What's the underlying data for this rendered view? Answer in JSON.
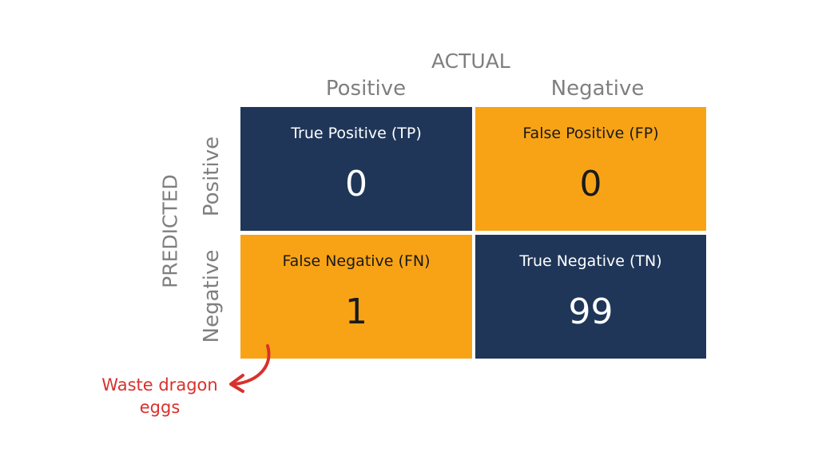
{
  "colors": {
    "dark_cell": "#1f3659",
    "orange_cell": "#f8a316",
    "axis_text": "#7f7f7f",
    "annotation": "#d9312b"
  },
  "actual": {
    "title": "ACTUAL",
    "positive_label": "Positive",
    "negative_label": "Negative"
  },
  "predicted": {
    "title": "PREDICTED",
    "positive_label": "Positive",
    "negative_label": "Negative"
  },
  "cells": {
    "tp": {
      "label": "True Positive (TP)",
      "value": "0"
    },
    "fp": {
      "label": "False Positive (FP)",
      "value": "0"
    },
    "fn": {
      "label": "False Negative (FN)",
      "value": "1"
    },
    "tn": {
      "label": "True Negative (TN)",
      "value": "99"
    }
  },
  "annotation": {
    "line1": "Waste dragon",
    "line2": "eggs",
    "icon": "curved-arrow-icon"
  }
}
